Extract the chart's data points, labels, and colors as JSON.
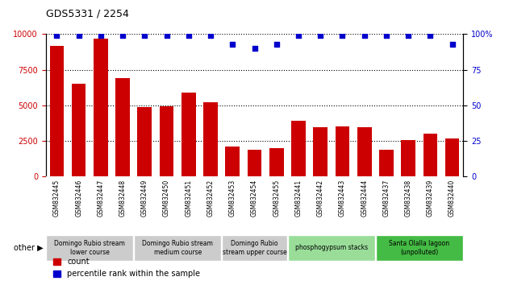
{
  "title": "GDS5331 / 2254",
  "samples": [
    "GSM832445",
    "GSM832446",
    "GSM832447",
    "GSM832448",
    "GSM832449",
    "GSM832450",
    "GSM832451",
    "GSM832452",
    "GSM832453",
    "GSM832454",
    "GSM832455",
    "GSM832441",
    "GSM832442",
    "GSM832443",
    "GSM832444",
    "GSM832437",
    "GSM832438",
    "GSM832439",
    "GSM832440"
  ],
  "counts": [
    9200,
    6500,
    9700,
    6900,
    4900,
    4950,
    5900,
    5200,
    2100,
    1900,
    2000,
    3900,
    3500,
    3550,
    3500,
    1900,
    2550,
    3000,
    2700
  ],
  "percentiles": [
    99,
    99,
    99,
    99,
    99,
    99,
    99,
    99,
    93,
    90,
    93,
    99,
    99,
    99,
    99,
    99,
    99,
    99,
    93
  ],
  "bar_color": "#cc0000",
  "dot_color": "#0000cc",
  "ylim_left": [
    0,
    10000
  ],
  "ylim_right": [
    0,
    100
  ],
  "yticks_left": [
    0,
    2500,
    5000,
    7500,
    10000
  ],
  "yticks_right": [
    0,
    25,
    50,
    75,
    100
  ],
  "groups": [
    {
      "label": "Domingo Rubio stream\nlower course",
      "start": 0,
      "end": 4,
      "color": "#cccccc"
    },
    {
      "label": "Domingo Rubio stream\nmedium course",
      "start": 4,
      "end": 8,
      "color": "#cccccc"
    },
    {
      "label": "Domingo Rubio\nstream upper course",
      "start": 8,
      "end": 11,
      "color": "#cccccc"
    },
    {
      "label": "phosphogypsum stacks",
      "start": 11,
      "end": 15,
      "color": "#99dd99"
    },
    {
      "label": "Santa Olalla lagoon\n(unpolluted)",
      "start": 15,
      "end": 19,
      "color": "#44bb44"
    }
  ],
  "other_label": "other",
  "legend_count_label": "count",
  "legend_pct_label": "percentile rank within the sample",
  "background_color": "#ffffff",
  "tick_bg_color": "#cccccc",
  "group_border_color": "#ffffff"
}
